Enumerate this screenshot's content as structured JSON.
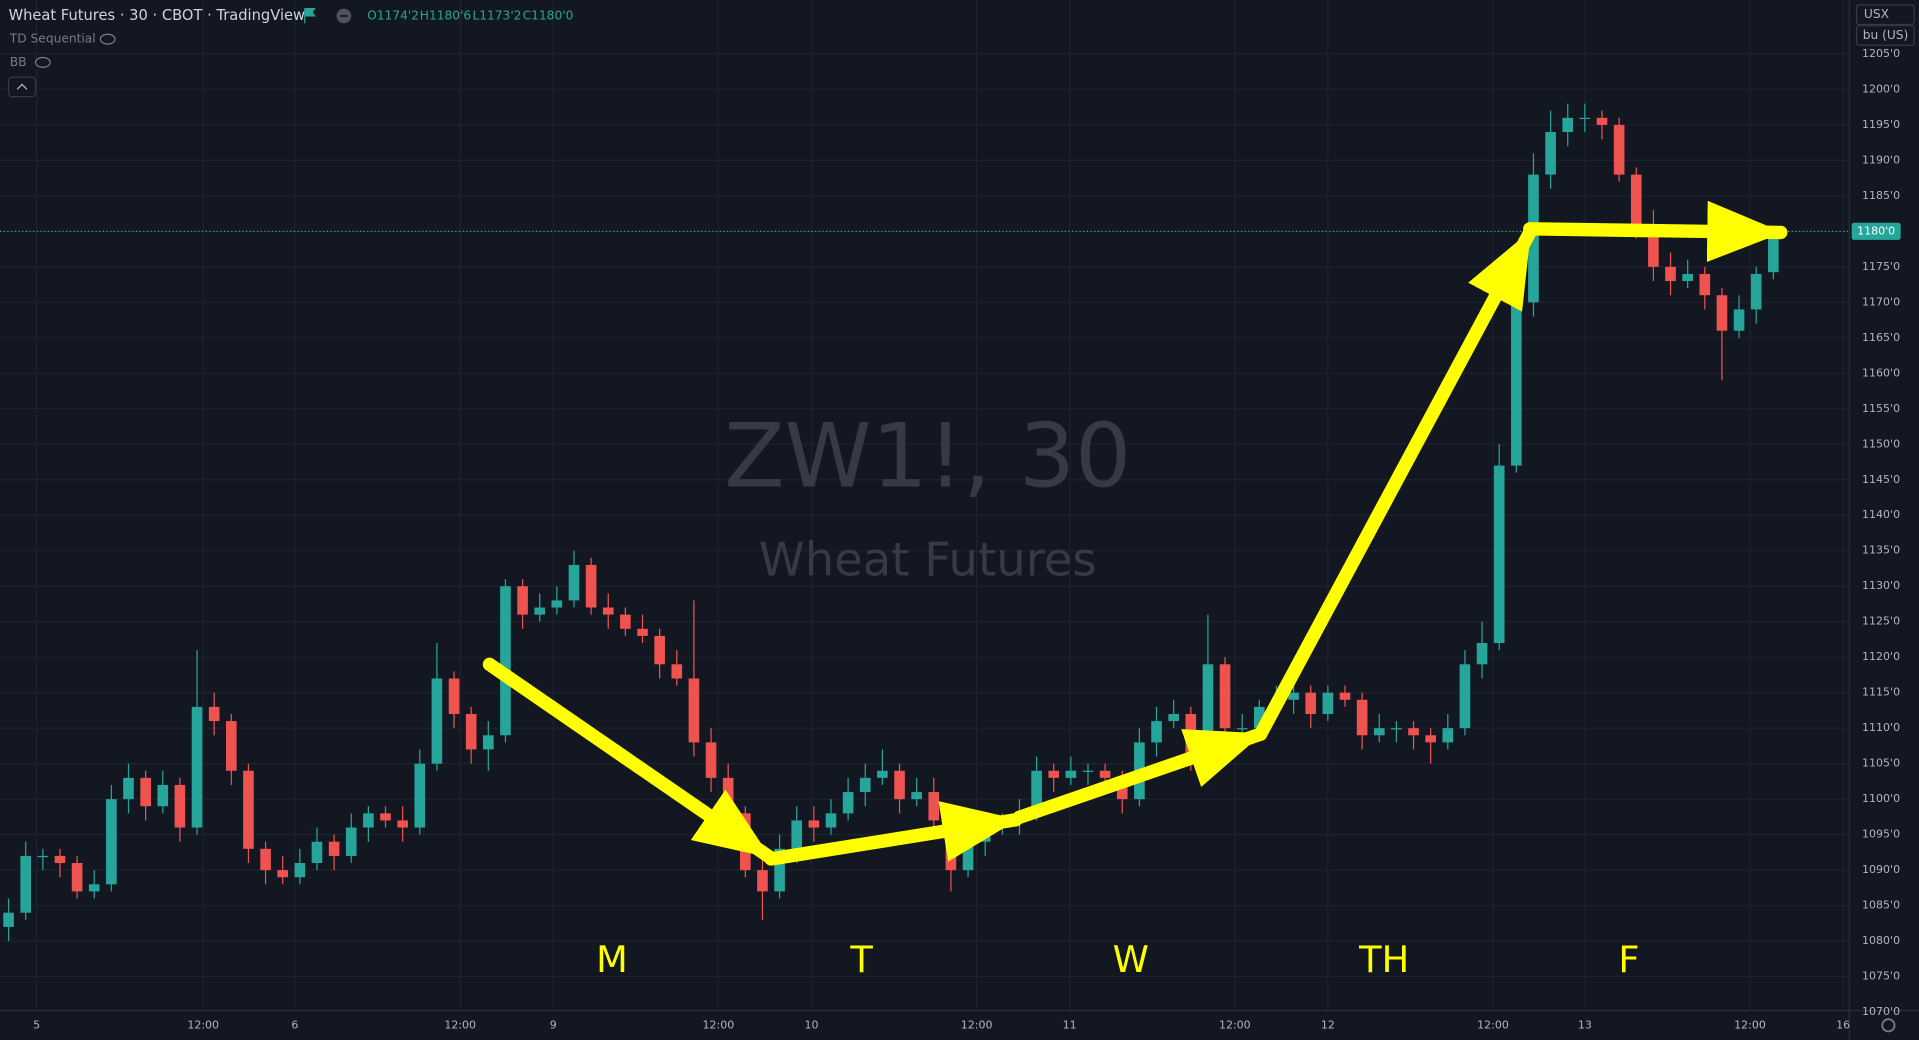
{
  "chart_data": {
    "type": "candlestick",
    "title": "Wheat Futures · 30 · CBOT · TradingView",
    "ohlc_legend": [
      "O1174'2",
      "H1180'6",
      "L1173'2",
      "C1180'0"
    ],
    "indicators": [
      "TD Sequential",
      "BB"
    ],
    "watermark": [
      "ZW1!, 30",
      "Wheat Futures"
    ],
    "units": [
      "USX",
      "bu (US)"
    ],
    "annotations": [
      "M",
      "T",
      "W",
      "TH",
      "F"
    ],
    "up_color": "#26a69a",
    "down_color": "#ef5350",
    "grid": true,
    "open": [
      1082,
      1084,
      1092,
      1092,
      1091,
      1087,
      1088,
      1100,
      1103,
      1099,
      1102,
      1096,
      1113,
      1111,
      1104,
      1093,
      1090,
      1089,
      1091,
      1094,
      1092,
      1096,
      1098,
      1097,
      1096,
      1105,
      1117,
      1112,
      1107,
      1109,
      1130,
      1126,
      1127,
      1128,
      1133,
      1127,
      1126,
      1124,
      1123,
      1119,
      1117,
      1108,
      1103,
      1098,
      1090,
      1087,
      1093,
      1097,
      1096,
      1098,
      1101,
      1103,
      1104,
      1100,
      1101,
      1097,
      1090,
      1094,
      1096,
      1097,
      1098,
      1104,
      1103,
      1104,
      1104,
      1103,
      1100,
      1108,
      1111,
      1112,
      1106,
      1119,
      1110,
      1110,
      1113,
      1114,
      1115,
      1112,
      1115,
      1114,
      1109,
      1110,
      1110,
      1109,
      1108,
      1110,
      1119,
      1122,
      1147,
      1170,
      1188,
      1194,
      1196,
      1196,
      1195,
      1188,
      1181,
      1175,
      1173,
      1174,
      1171,
      1166,
      1169,
      1174.25
    ],
    "high": [
      1086,
      1094,
      1093,
      1093,
      1092,
      1090,
      1102,
      1105,
      1104,
      1104,
      1103,
      1121,
      1115,
      1112,
      1105,
      1094,
      1092,
      1093,
      1096,
      1095,
      1098,
      1099,
      1099,
      1099,
      1107,
      1122,
      1118,
      1113,
      1111,
      1131,
      1131,
      1129,
      1130,
      1135,
      1134,
      1129,
      1127,
      1126,
      1124,
      1121,
      1128,
      1110,
      1105,
      1099,
      1092,
      1095,
      1099,
      1099,
      1100,
      1103,
      1105,
      1107,
      1105,
      1103,
      1103,
      1099,
      1096,
      1098,
      1098,
      1100,
      1106,
      1105,
      1106,
      1105,
      1105,
      1104,
      1110,
      1113,
      1114,
      1113,
      1126,
      1120,
      1112,
      1114,
      1116,
      1116,
      1116,
      1116,
      1116,
      1115,
      1112,
      1111,
      1111,
      1110,
      1112,
      1121,
      1125,
      1150,
      1173,
      1191,
      1197,
      1198,
      1198,
      1197,
      1196,
      1189,
      1183,
      1177,
      1176,
      1175,
      1172,
      1171,
      1175,
      1180.75
    ],
    "low": [
      1080,
      1083,
      1090,
      1089,
      1086,
      1086,
      1087,
      1098,
      1097,
      1098,
      1094,
      1095,
      1109,
      1102,
      1091,
      1088,
      1088,
      1088,
      1090,
      1090,
      1091,
      1094,
      1096,
      1094,
      1095,
      1104,
      1110,
      1105,
      1104,
      1108,
      1124,
      1125,
      1126,
      1127,
      1126,
      1124,
      1123,
      1122,
      1117,
      1116,
      1106,
      1101,
      1096,
      1089,
      1083,
      1086,
      1091,
      1094,
      1095,
      1097,
      1099,
      1102,
      1098,
      1099,
      1095,
      1087,
      1089,
      1092,
      1095,
      1095,
      1097,
      1101,
      1102,
      1102,
      1102,
      1098,
      1099,
      1106,
      1110,
      1104,
      1105,
      1108,
      1108,
      1109,
      1112,
      1112,
      1110,
      1111,
      1113,
      1107,
      1108,
      1108,
      1107,
      1105,
      1107,
      1109,
      1117,
      1121,
      1146,
      1168,
      1186,
      1192,
      1194,
      1193,
      1187,
      1179,
      1173,
      1171,
      1172,
      1169,
      1159,
      1165,
      1167,
      1173.25
    ],
    "close": [
      1084,
      1092,
      1092,
      1091,
      1087,
      1088,
      1100,
      1103,
      1099,
      1102,
      1096,
      1113,
      1111,
      1104,
      1093,
      1090,
      1089,
      1091,
      1094,
      1092,
      1096,
      1098,
      1097,
      1096,
      1105,
      1117,
      1112,
      1107,
      1109,
      1130,
      1126,
      1127,
      1128,
      1133,
      1127,
      1126,
      1124,
      1123,
      1119,
      1117,
      1108,
      1103,
      1098,
      1090,
      1087,
      1093,
      1097,
      1096,
      1098,
      1101,
      1103,
      1104,
      1100,
      1101,
      1097,
      1090,
      1094,
      1096,
      1097,
      1098,
      1104,
      1103,
      1104,
      1104,
      1103,
      1100,
      1108,
      1111,
      1112,
      1106,
      1119,
      1110,
      1110,
      1113,
      1114,
      1115,
      1112,
      1115,
      1114,
      1109,
      1110,
      1110,
      1109,
      1108,
      1110,
      1119,
      1122,
      1147,
      1170,
      1188,
      1194,
      1196,
      1196,
      1195,
      1188,
      1181,
      1175,
      1173,
      1174,
      1171,
      1166,
      1169,
      1174,
      1180
    ],
    "last_price": {
      "value": 1180,
      "label": "1180'0"
    },
    "xlim": [
      -0.5,
      107.43
    ],
    "xticks": [
      {
        "value": 1.64,
        "label": "5"
      },
      {
        "value": 11.36,
        "label": "12:00"
      },
      {
        "value": 16.71,
        "label": "6"
      },
      {
        "value": 26.36,
        "label": "12:00"
      },
      {
        "value": 31.79,
        "label": "9"
      },
      {
        "value": 41.43,
        "label": "12:00"
      },
      {
        "value": 46.86,
        "label": "10"
      },
      {
        "value": 56.5,
        "label": "12:00"
      },
      {
        "value": 61.93,
        "label": "11"
      },
      {
        "value": 71.57,
        "label": "12:00"
      },
      {
        "value": 77,
        "label": "12"
      },
      {
        "value": 86.64,
        "label": "12:00"
      },
      {
        "value": 92,
        "label": "13"
      },
      {
        "value": 101.64,
        "label": "12:00"
      },
      {
        "value": 107.07,
        "label": "16"
      }
    ],
    "ylim": [
      1070.2,
      1212.6
    ],
    "yticks": [
      {
        "value": 1070,
        "label": "1070'0"
      },
      {
        "value": 1075,
        "label": "1075'0"
      },
      {
        "value": 1080,
        "label": "1080'0"
      },
      {
        "value": 1085,
        "label": "1085'0"
      },
      {
        "value": 1090,
        "label": "1090'0"
      },
      {
        "value": 1095,
        "label": "1095'0"
      },
      {
        "value": 1100,
        "label": "1100'0"
      },
      {
        "value": 1105,
        "label": "1105'0"
      },
      {
        "value": 1110,
        "label": "1110'0"
      },
      {
        "value": 1115,
        "label": "1115'0"
      },
      {
        "value": 1120,
        "label": "1120'0"
      },
      {
        "value": 1125,
        "label": "1125'0"
      },
      {
        "value": 1130,
        "label": "1130'0"
      },
      {
        "value": 1135,
        "label": "1135'0"
      },
      {
        "value": 1140,
        "label": "1140'0"
      },
      {
        "value": 1145,
        "label": "1145'0"
      },
      {
        "value": 1150,
        "label": "1150'0"
      },
      {
        "value": 1155,
        "label": "1155'0"
      },
      {
        "value": 1160,
        "label": "1160'0"
      },
      {
        "value": 1165,
        "label": "1165'0"
      },
      {
        "value": 1170,
        "label": "1170'0"
      },
      {
        "value": 1175,
        "label": "1175'0"
      },
      {
        "value": 1180,
        "label": "1180'0"
      },
      {
        "value": 1185,
        "label": "1185'0"
      },
      {
        "value": 1190,
        "label": "1190'0"
      },
      {
        "value": 1195,
        "label": "1195'0"
      },
      {
        "value": 1200,
        "label": "1200'0"
      },
      {
        "value": 1205,
        "label": "1205'0"
      }
    ]
  }
}
